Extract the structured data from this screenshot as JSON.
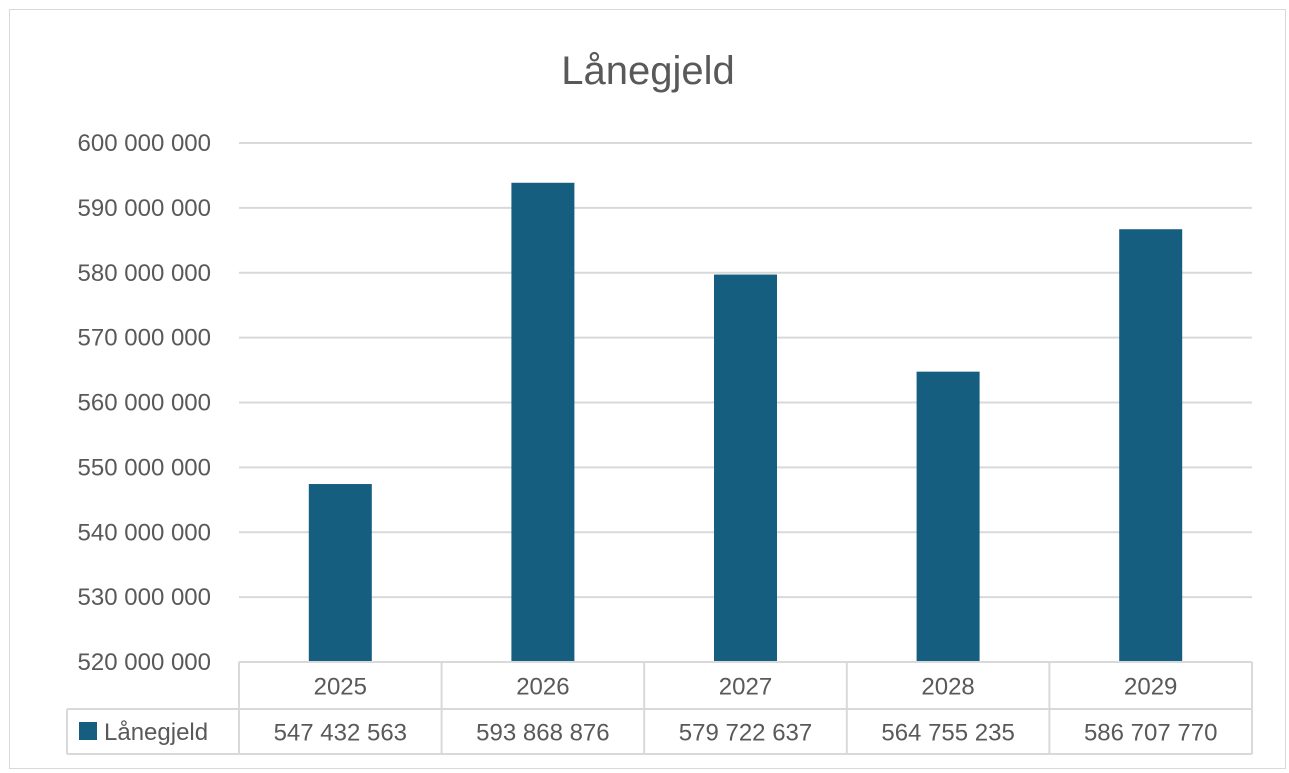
{
  "chart_data": {
    "type": "bar",
    "title": "Lånegjeld",
    "categories": [
      "2025",
      "2026",
      "2027",
      "2028",
      "2029"
    ],
    "series": [
      {
        "name": "Lånegjeld",
        "values": [
          547432563,
          593868876,
          579722637,
          564755235,
          586707770
        ],
        "value_labels": [
          "547 432 563",
          "593 868 876",
          "579 722 637",
          "564 755 235",
          "586 707 770"
        ],
        "color": "#165e80"
      }
    ],
    "ylim": [
      520000000,
      600000000
    ],
    "y_ticks": [
      520000000,
      530000000,
      540000000,
      550000000,
      560000000,
      570000000,
      580000000,
      590000000,
      600000000
    ],
    "y_tick_labels": [
      "520 000 000",
      "530 000 000",
      "540 000 000",
      "550 000 000",
      "560 000 000",
      "570 000 000",
      "580 000 000",
      "590 000 000",
      "600 000 000"
    ],
    "grid": true,
    "legend": "data-table",
    "colors": {
      "bar": "#165e80",
      "grid": "#d9d9d9",
      "text": "#595959"
    }
  }
}
